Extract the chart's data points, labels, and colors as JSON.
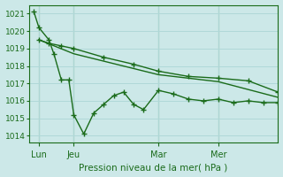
{
  "background_color": "#cce8e8",
  "grid_color": "#b0d8d8",
  "line_color": "#1a6b1a",
  "marker": "+",
  "marker_size": 4,
  "linewidth": 1.0,
  "ylabel_ticks": [
    1014,
    1015,
    1016,
    1017,
    1018,
    1019,
    1020,
    1021
  ],
  "xlabel": "Pression niveau de la mer( hPa )",
  "xlim": [
    0,
    1
  ],
  "ylim": [
    1013.6,
    1021.5
  ],
  "xtick_positions": [
    0.04,
    0.18,
    0.52,
    0.76
  ],
  "xtick_labels": [
    "Lun",
    "Jeu",
    "Mar",
    "Mer"
  ],
  "vline_positions": [
    0.04,
    0.18,
    0.52,
    0.76
  ],
  "vline_color": "#2d7a2d",
  "series1_x": [
    0.02,
    0.04,
    0.08,
    0.1,
    0.13,
    0.16,
    0.18,
    0.22,
    0.26,
    0.3,
    0.34,
    0.38,
    0.42,
    0.46,
    0.52,
    0.58,
    0.64,
    0.7,
    0.76,
    0.82,
    0.88,
    0.94,
    1.0
  ],
  "series1_y": [
    1021.1,
    1020.2,
    1019.5,
    1018.7,
    1017.2,
    1017.2,
    1015.2,
    1014.1,
    1015.3,
    1015.8,
    1016.3,
    1016.5,
    1015.8,
    1015.5,
    1016.6,
    1016.4,
    1016.1,
    1016.0,
    1016.1,
    1015.9,
    1016.0,
    1015.9,
    1015.9
  ],
  "series2_x": [
    0.04,
    0.08,
    0.13,
    0.18,
    0.3,
    0.42,
    0.52,
    0.64,
    0.76,
    0.88,
    1.0
  ],
  "series2_y": [
    1019.5,
    1019.3,
    1019.15,
    1019.0,
    1018.5,
    1018.1,
    1017.7,
    1017.4,
    1017.3,
    1017.15,
    1016.5
  ],
  "series3_x": [
    0.04,
    0.18,
    0.52,
    0.76,
    1.0
  ],
  "series3_y": [
    1019.5,
    1018.7,
    1017.5,
    1017.1,
    1016.2
  ]
}
